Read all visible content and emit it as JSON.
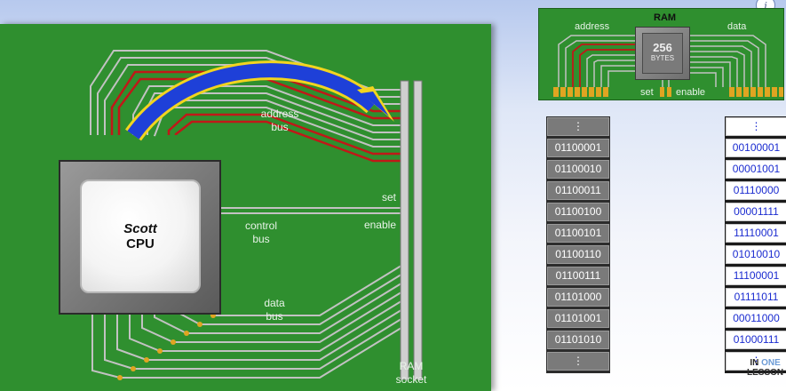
{
  "board": {
    "cpu": {
      "name": "Scott",
      "label": "CPU"
    },
    "labels": {
      "address_bus": "address",
      "address_bus_2": "bus",
      "control_bus": "control",
      "control_bus_2": "bus",
      "data_bus": "data",
      "data_bus_2": "bus",
      "set": "set",
      "enable": "enable",
      "ram_socket": "RAM",
      "ram_socket_2": "socket"
    },
    "colors": {
      "board": "#2f8f2f",
      "arrow": "#1e40d8",
      "arrow_outline": "#f2d41f",
      "wire": "#c2c2c2",
      "active_wire": "#c01818"
    }
  },
  "ram_chip": {
    "title": "RAM",
    "size": "256",
    "unit": "BYTES",
    "address_label": "address",
    "data_label": "data",
    "set_label": "set",
    "enable_label": "enable"
  },
  "address_column": {
    "cells": [
      "⋮",
      "01100001",
      "01100010",
      "01100011",
      "01100100",
      "01100101",
      "01100110",
      "01100111",
      "01101000",
      "01101001",
      "01101010",
      "⋮"
    ]
  },
  "data_column": {
    "cells": [
      "⋮",
      "00100001",
      "00001001",
      "01110000",
      "00001111",
      "11110001",
      "01010010",
      "11100001",
      "01111011",
      "00011000",
      "01000111",
      "⋮"
    ]
  },
  "brand": {
    "line1a": "IN",
    "line1b": "ONE",
    "line2": "LESSON"
  },
  "icons": {
    "info": "i"
  }
}
